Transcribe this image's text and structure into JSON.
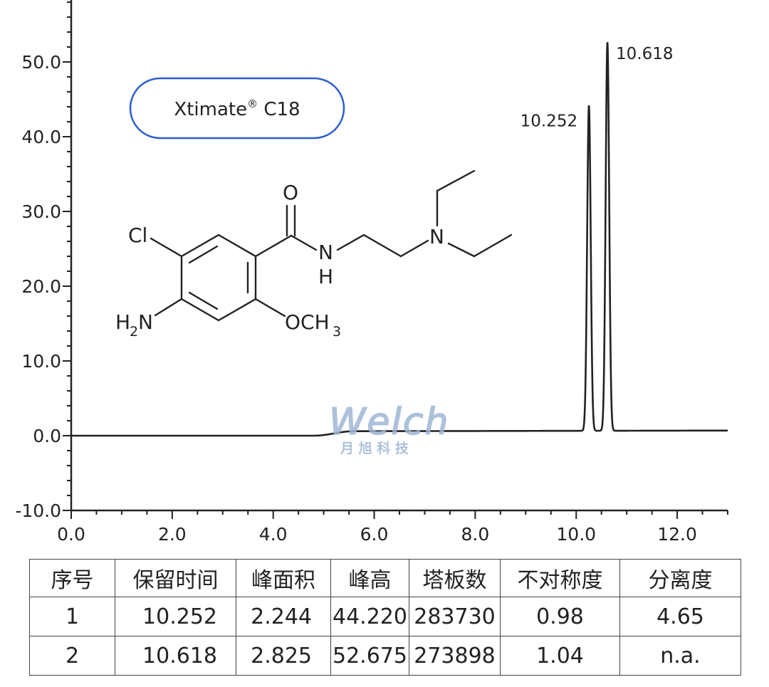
{
  "chart_data": {
    "type": "line",
    "title": "",
    "xlabel": "",
    "ylabel": "",
    "xlim": [
      0,
      13
    ],
    "ylim": [
      -10,
      55
    ],
    "x_ticks": [
      "0.0",
      "2.0",
      "4.0",
      "6.0",
      "8.0",
      "10.0",
      "12.0"
    ],
    "y_ticks": [
      "-10.0",
      "0.0",
      "10.0",
      "20.0",
      "30.0",
      "40.0",
      "50.0"
    ],
    "grid": false,
    "series": [
      {
        "color": "#222222",
        "peaks": [
          {
            "rt": 10.252,
            "height": 44.22,
            "label": "10.252"
          },
          {
            "rt": 10.618,
            "height": 52.675,
            "label": "10.618"
          }
        ]
      }
    ]
  },
  "column_badge": {
    "text": "Xtimate",
    "sup": "®",
    "suffix": " C18",
    "border_color": "#2b5fcf"
  },
  "molecule": {
    "cl": "Cl",
    "o": "O",
    "n_amide": "N",
    "h_amide": "H",
    "n_amine": "N",
    "h2n_h": "H",
    "h2n_2": "2",
    "h2n_n": "N",
    "och": "OCH",
    "och_3": "3"
  },
  "watermark": {
    "brand": "Welch",
    "sub": "月 旭 科 技",
    "color": "#9fb7d4"
  },
  "table": {
    "headers": [
      "序号",
      "保留时间",
      "峰面积",
      "峰高",
      "塔板数",
      "不对称度",
      "分离度"
    ],
    "rows": [
      [
        "1",
        "10.252",
        "2.244",
        "44.220",
        "283730",
        "0.98",
        "4.65"
      ],
      [
        "2",
        "10.618",
        "2.825",
        "52.675",
        "273898",
        "1.04",
        "n.a."
      ]
    ]
  }
}
